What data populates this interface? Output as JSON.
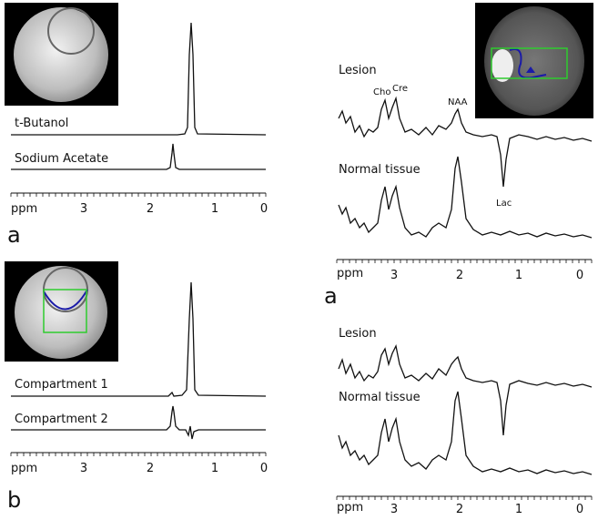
{
  "left": {
    "a": {
      "traces": [
        "t-Butanol",
        "Sodium Acetate"
      ],
      "axis": [
        "ppm",
        "3",
        "2",
        "1",
        "0"
      ],
      "label": "a"
    },
    "b": {
      "traces": [
        "Compartment 1",
        "Compartment 2"
      ],
      "axis": [
        "ppm",
        "3",
        "2",
        "1",
        "0"
      ],
      "label": "b"
    }
  },
  "right": {
    "a": {
      "traces": [
        "Lesion",
        "Normal tissue"
      ],
      "peaks": [
        "Cho",
        "Cre",
        "NAA",
        "Lac"
      ],
      "axis": [
        "ppm",
        "3",
        "2",
        "1",
        "0"
      ],
      "label": "a"
    },
    "b": {
      "traces": [
        "Lesion",
        "Normal tissue"
      ],
      "axis": [
        "ppm",
        "3",
        "2",
        "1",
        "0"
      ]
    }
  }
}
